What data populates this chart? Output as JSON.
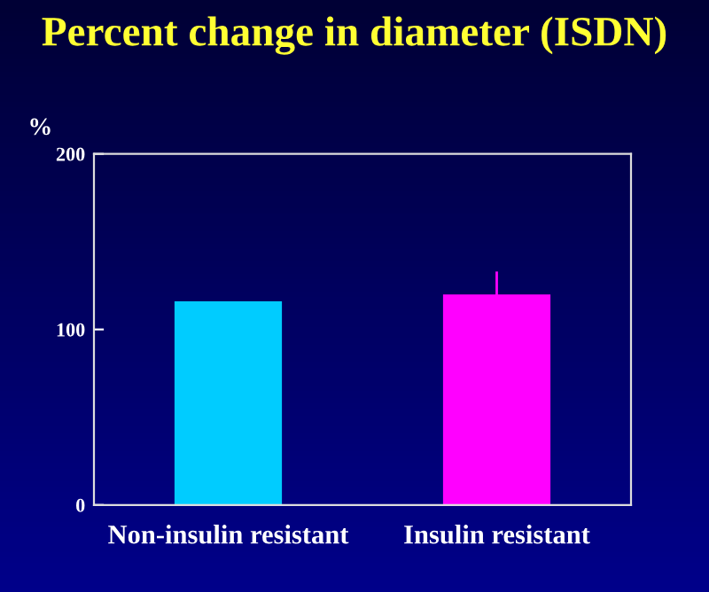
{
  "chart_data": {
    "type": "bar",
    "title": "Percent change in diameter (ISDN)",
    "ylabel": "%",
    "categories": [
      "Non-insulin resistant",
      "Insulin resistant"
    ],
    "values": [
      116,
      120
    ],
    "colors": [
      "#00ccff",
      "#ff00ff"
    ],
    "errors": [
      null,
      13
    ],
    "ylim": [
      0,
      200
    ],
    "yticks": [
      0,
      100,
      200
    ],
    "grid": false,
    "legend": false
  }
}
